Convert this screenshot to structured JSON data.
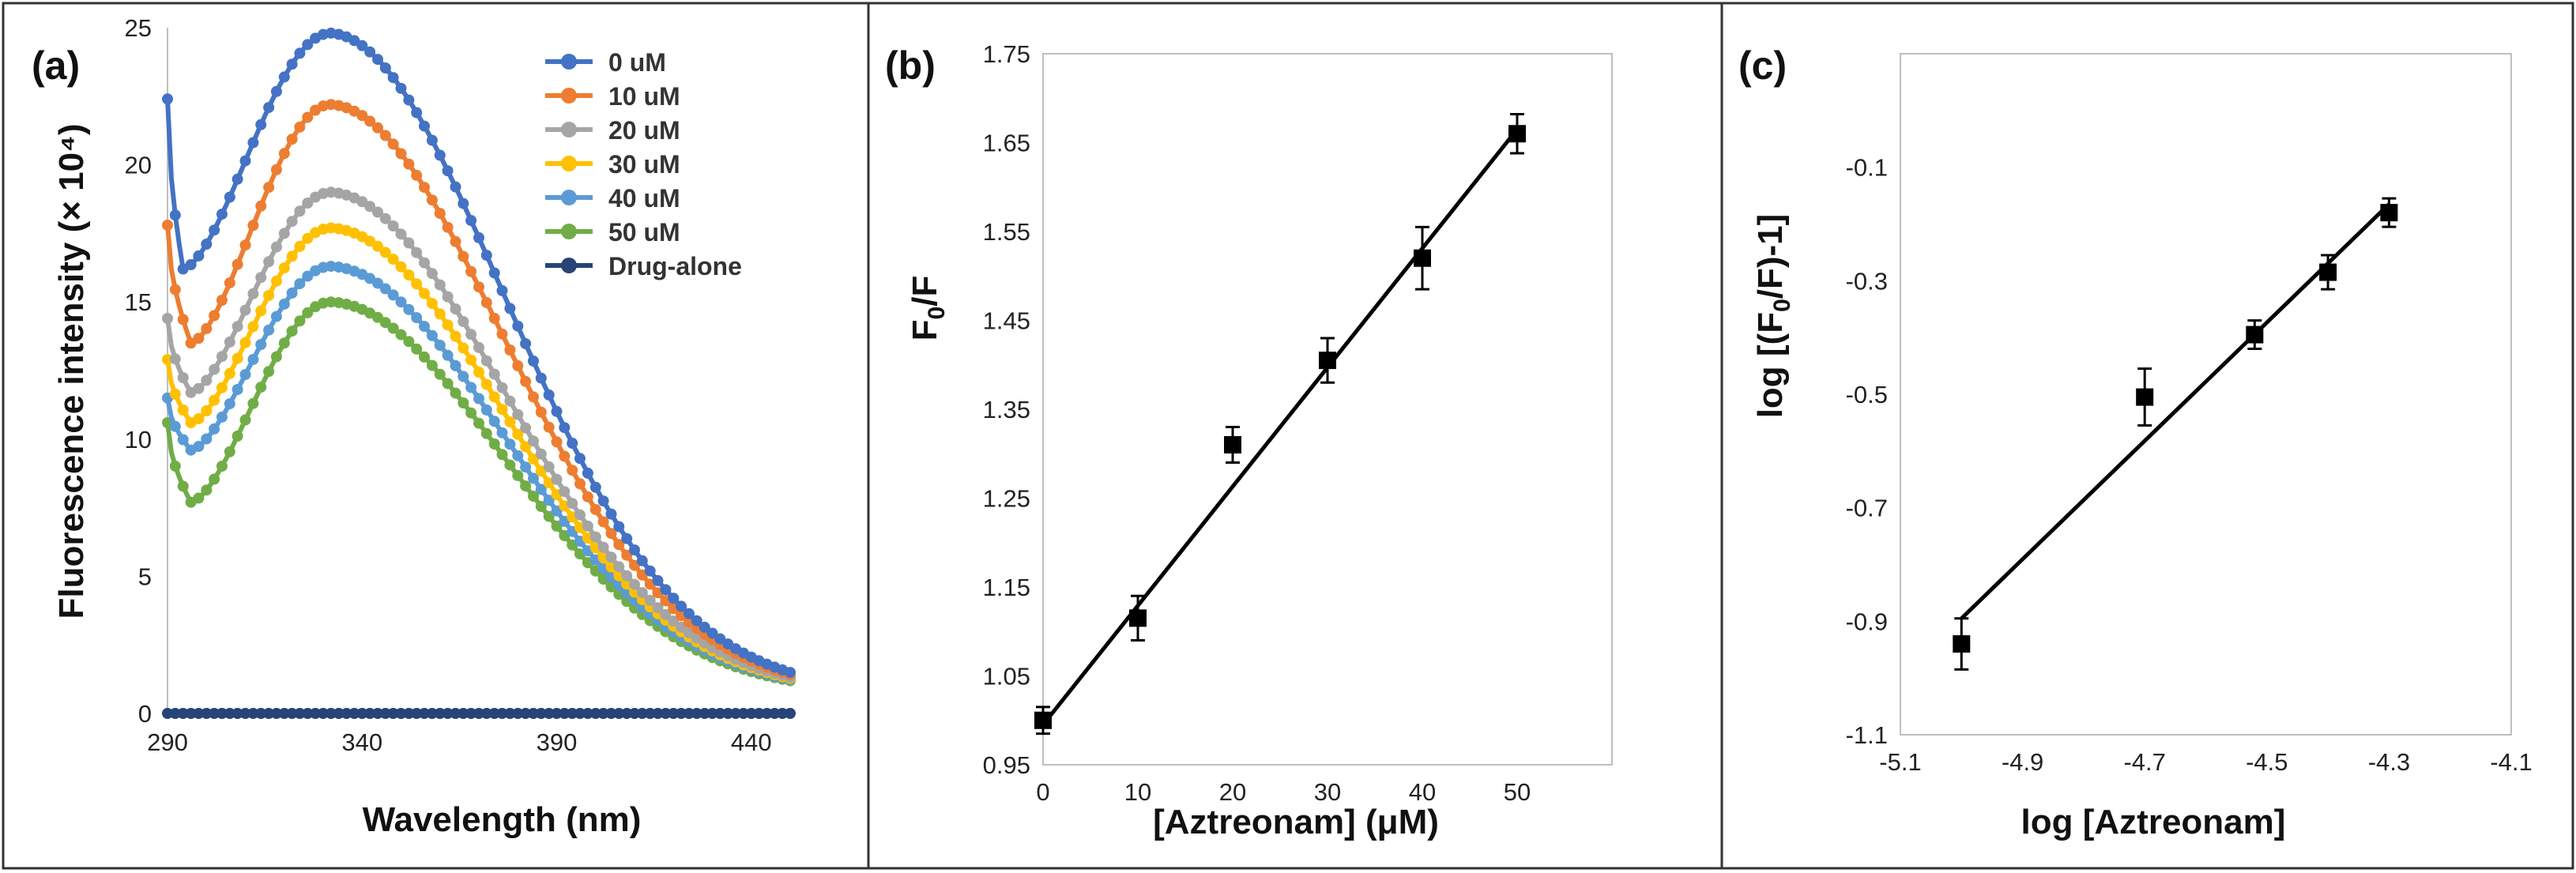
{
  "chart_data": [
    {
      "type": "line",
      "panel_label": "(a)",
      "xlabel": "Wavelength (nm)",
      "ylabel": "Fluorescence intensity (× 10⁴)",
      "xlim": [
        290,
        450
      ],
      "ylim": [
        0,
        25
      ],
      "xticks": [
        "290",
        "340",
        "390",
        "440"
      ],
      "yticks": [
        "0",
        "5",
        "10",
        "15",
        "20",
        "25"
      ],
      "legend_position": "top-right",
      "series": [
        {
          "name": "0 uM",
          "color": "#4472C4",
          "peak": 24.8,
          "dip": 16.2,
          "start": 22.4
        },
        {
          "name": "10 uM",
          "color": "#ED7D31",
          "peak": 22.2,
          "dip": 13.5,
          "start": 17.8
        },
        {
          "name": "20 uM",
          "color": "#A5A5A5",
          "peak": 19.0,
          "dip": 11.7,
          "start": 14.4
        },
        {
          "name": "30 uM",
          "color": "#FFC000",
          "peak": 17.7,
          "dip": 10.6,
          "start": 12.9
        },
        {
          "name": "40 uM",
          "color": "#5B9BD5",
          "peak": 16.3,
          "dip": 9.6,
          "start": 11.5
        },
        {
          "name": "50 uM",
          "color": "#70AD47",
          "peak": 15.0,
          "dip": 7.7,
          "start": 10.6
        },
        {
          "name": "Drug-alone",
          "color": "#264478",
          "peak": 0.0,
          "dip": 0.0,
          "start": 0.0
        }
      ]
    },
    {
      "type": "scatter",
      "panel_label": "(b)",
      "xlabel": "[Aztreonam] (μM)",
      "ylabel_main": "F",
      "ylabel_sub": "0",
      "ylabel_rest": "/F",
      "xlim": [
        0,
        60
      ],
      "ylim": [
        0.95,
        1.75
      ],
      "xticks": [
        "0",
        "10",
        "20",
        "30",
        "40",
        "50"
      ],
      "yticks": [
        "0.95",
        "1.05",
        "1.15",
        "1.25",
        "1.35",
        "1.45",
        "1.55",
        "1.65",
        "1.75"
      ],
      "x": [
        0,
        10,
        20,
        30,
        40,
        50
      ],
      "y": [
        1.0,
        1.115,
        1.31,
        1.405,
        1.52,
        1.66
      ],
      "err": [
        0.015,
        0.025,
        0.02,
        0.025,
        0.035,
        0.022
      ],
      "fit": {
        "x": [
          0,
          50
        ],
        "y": [
          0.995,
          1.665
        ]
      }
    },
    {
      "type": "scatter",
      "panel_label": "(c)",
      "xlabel": "log [Aztreonam]",
      "ylabel": "log [(F0/F)-1]",
      "ylabel_pre": "log [(F",
      "ylabel_sub": "0",
      "ylabel_post": "/F)-1]",
      "xlim": [
        -5.1,
        -4.1
      ],
      "ylim": [
        -1.1,
        0.1
      ],
      "xticks": [
        "-5.1",
        "-4.9",
        "-4.7",
        "-4.5",
        "-4.3",
        "-4.1"
      ],
      "yticks": [
        "-1.1",
        "-0.9",
        "-0.7",
        "-0.5",
        "-0.3",
        "-0.1"
      ],
      "x": [
        -5.0,
        -4.7,
        -4.52,
        -4.4,
        -4.3
      ],
      "y": [
        -0.94,
        -0.505,
        -0.395,
        -0.285,
        -0.18
      ],
      "err": [
        0.045,
        0.05,
        0.025,
        0.03,
        0.025
      ],
      "fit": {
        "x": [
          -5.0,
          -4.3
        ],
        "y": [
          -0.895,
          -0.165
        ]
      }
    }
  ]
}
